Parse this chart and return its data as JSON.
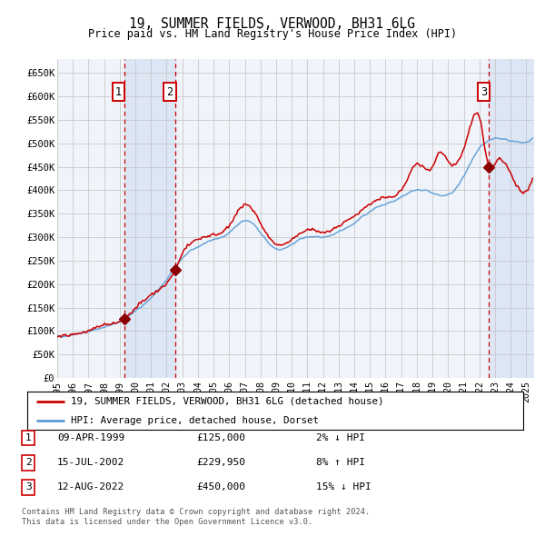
{
  "title": "19, SUMMER FIELDS, VERWOOD, BH31 6LG",
  "subtitle": "Price paid vs. HM Land Registry's House Price Index (HPI)",
  "legend_line1": "19, SUMMER FIELDS, VERWOOD, BH31 6LG (detached house)",
  "legend_line2": "HPI: Average price, detached house, Dorset",
  "table": [
    {
      "num": "1",
      "date": "09-APR-1999",
      "price": "£125,000",
      "hpi": "2% ↓ HPI"
    },
    {
      "num": "2",
      "date": "15-JUL-2002",
      "price": "£229,950",
      "hpi": "8% ↑ HPI"
    },
    {
      "num": "3",
      "date": "12-AUG-2022",
      "price": "£450,000",
      "hpi": "15% ↓ HPI"
    }
  ],
  "footnote1": "Contains HM Land Registry data © Crown copyright and database right 2024.",
  "footnote2": "This data is licensed under the Open Government Licence v3.0.",
  "sale_dates_decimal": [
    1999.27,
    2002.54,
    2022.62
  ],
  "sale_prices": [
    125000,
    229950,
    450000
  ],
  "red_line_color": "#cc0000",
  "blue_line_color": "#5b9bd5",
  "shaded_color": "#dce6f5",
  "marker_color": "#8b0000",
  "grid_color": "#c8c8c8",
  "background_color": "#ffffff",
  "plot_bg_color": "#f0f4fa",
  "ylim": [
    0,
    680000
  ],
  "xlim_start": 1995.0,
  "xlim_end": 2025.5,
  "yticks": [
    0,
    50000,
    100000,
    150000,
    200000,
    250000,
    300000,
    350000,
    400000,
    450000,
    500000,
    550000,
    600000,
    650000
  ],
  "ytick_labels": [
    "£0",
    "£50K",
    "£100K",
    "£150K",
    "£200K",
    "£250K",
    "£300K",
    "£350K",
    "£400K",
    "£450K",
    "£500K",
    "£550K",
    "£600K",
    "£650K"
  ],
  "xticks": [
    1995,
    1996,
    1997,
    1998,
    1999,
    2000,
    2001,
    2002,
    2003,
    2004,
    2005,
    2006,
    2007,
    2008,
    2009,
    2010,
    2011,
    2012,
    2013,
    2014,
    2015,
    2016,
    2017,
    2018,
    2019,
    2020,
    2021,
    2022,
    2023,
    2024,
    2025
  ],
  "hpi_t": [
    1995.0,
    1996.0,
    1997.0,
    1998.0,
    1999.0,
    2000.0,
    2001.0,
    2002.0,
    2003.0,
    2004.0,
    2005.0,
    2006.0,
    2007.0,
    2008.0,
    2009.0,
    2010.0,
    2011.0,
    2012.0,
    2013.0,
    2014.0,
    2015.0,
    2016.0,
    2017.0,
    2018.0,
    2019.0,
    2020.0,
    2021.0,
    2022.0,
    2023.0,
    2024.0,
    2025.5
  ],
  "hpi_v": [
    88000,
    92000,
    99000,
    108000,
    120000,
    143000,
    170000,
    210000,
    255000,
    280000,
    295000,
    310000,
    335000,
    310000,
    275000,
    285000,
    300000,
    300000,
    310000,
    330000,
    355000,
    370000,
    385000,
    400000,
    395000,
    390000,
    430000,
    490000,
    510000,
    505000,
    510000
  ],
  "red_t": [
    1995.0,
    1996.0,
    1997.0,
    1998.0,
    1999.27,
    2000.0,
    2001.0,
    2002.54,
    2003.0,
    2004.0,
    2005.0,
    2006.0,
    2007.0,
    2008.0,
    2009.0,
    2010.0,
    2011.0,
    2012.0,
    2013.0,
    2014.0,
    2015.0,
    2016.0,
    2017.0,
    2018.0,
    2019.0,
    2019.5,
    2020.0,
    2021.0,
    2021.5,
    2022.0,
    2022.62,
    2023.0,
    2024.0,
    2025.5
  ],
  "red_v": [
    88000,
    93000,
    101000,
    112000,
    125000,
    148000,
    178000,
    229950,
    265000,
    295000,
    305000,
    325000,
    370000,
    330000,
    285000,
    295000,
    315000,
    310000,
    325000,
    345000,
    370000,
    385000,
    400000,
    455000,
    450000,
    480000,
    460000,
    490000,
    545000,
    555000,
    450000,
    460000,
    435000,
    440000
  ]
}
